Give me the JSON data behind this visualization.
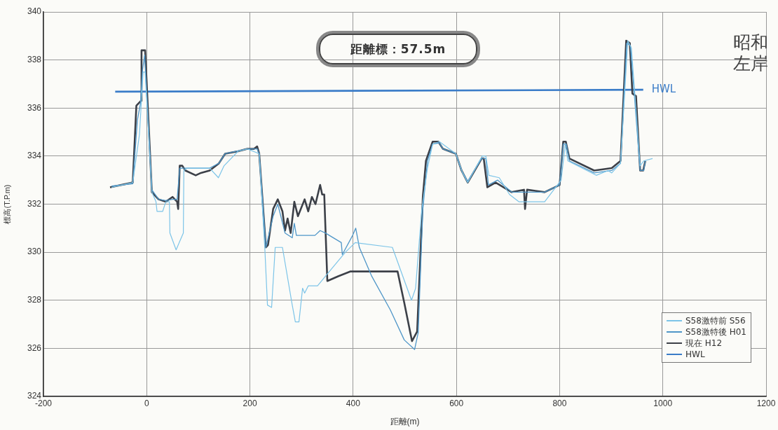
{
  "chart_data": {
    "type": "line",
    "title": "距離標：57.5m",
    "xlabel": "距離(m)",
    "ylabel": "標高(T.P.m)",
    "xlim": [
      -200,
      1200
    ],
    "xticks": [
      -200,
      0,
      200,
      400,
      600,
      800,
      1000,
      1200
    ],
    "ylim": [
      324,
      340
    ],
    "yticks": [
      324,
      326,
      328,
      330,
      332,
      334,
      336,
      338,
      340
    ],
    "grid": true,
    "legend": "bottom right",
    "marker": "none",
    "line_style": "solid",
    "annotations": [
      "HWL",
      "昭和",
      "左岸"
    ],
    "series": [
      {
        "name": "S58激特前 S56",
        "color": "#7cc4e8",
        "x": [
          -68,
          -27,
          -14,
          -7,
          -3,
          10,
          18,
          20,
          31,
          37,
          44,
          45,
          57,
          71,
          72,
          78,
          122,
          139,
          150,
          177,
          195,
          218,
          229,
          234,
          242,
          249,
          263,
          282,
          288,
          295,
          302,
          306,
          313,
          331,
          350,
          385,
          404,
          476,
          513,
          521,
          533,
          544,
          554,
          567,
          599,
          612,
          622,
          650,
          657,
          663,
          683,
          703,
          721,
          771,
          803,
          811,
          816,
          871,
          894,
          901,
          918,
          932,
          939,
          946,
          956,
          963,
          980
        ],
        "values": [
          332.7,
          332.9,
          334.9,
          337.5,
          337.5,
          332.5,
          332.1,
          331.7,
          331.7,
          332.1,
          332.1,
          330.8,
          330.1,
          330.8,
          333.4,
          333.5,
          333.5,
          333.1,
          333.6,
          334.2,
          334.3,
          334.1,
          330.1,
          327.8,
          327.7,
          330.2,
          330.2,
          327.8,
          327.1,
          327.1,
          328.5,
          328.3,
          328.6,
          328.6,
          329.1,
          330.0,
          330.4,
          330.2,
          328.0,
          328.5,
          331.8,
          333.5,
          334.5,
          334.6,
          334.1,
          333.3,
          332.9,
          334.0,
          334.0,
          333.2,
          333.1,
          332.4,
          332.1,
          332.1,
          333.0,
          334.5,
          333.8,
          333.2,
          333.4,
          333.3,
          333.7,
          338.8,
          338.5,
          336.5,
          333.6,
          333.8,
          333.9
        ]
      },
      {
        "name": "S58激特後 H01",
        "color": "#4f96c8",
        "x": [
          -68,
          -27,
          -18,
          -12,
          -8,
          -4,
          10,
          23,
          37,
          50,
          59,
          64,
          72,
          122,
          140,
          152,
          195,
          214,
          218,
          231,
          245,
          254,
          268,
          282,
          286,
          290,
          326,
          336,
          346,
          377,
          379,
          399,
          405,
          412,
          436,
          472,
          499,
          519,
          526,
          535,
          544,
          554,
          567,
          574,
          599,
          610,
          622,
          649,
          657,
          662,
          680,
          707,
          733,
          771,
          800,
          807,
          813,
          819,
          867,
          901,
          918,
          930,
          937,
          945,
          956,
          963,
          966
        ],
        "values": [
          332.75,
          332.85,
          335.5,
          336.2,
          337.6,
          338.2,
          332.6,
          332.2,
          332.15,
          332.2,
          332.2,
          333.5,
          333.5,
          333.5,
          333.7,
          334.1,
          334.3,
          334.3,
          334.1,
          330.2,
          331.5,
          332.0,
          330.8,
          330.6,
          331.2,
          330.7,
          330.7,
          330.9,
          330.8,
          330.4,
          329.9,
          330.7,
          331.0,
          330.2,
          329.0,
          327.6,
          326.35,
          325.95,
          326.65,
          331.8,
          333.8,
          334.5,
          334.55,
          334.3,
          334.1,
          333.4,
          332.95,
          333.9,
          333.9,
          332.8,
          333.0,
          332.5,
          332.5,
          332.5,
          332.8,
          334.5,
          334.5,
          333.8,
          333.3,
          333.4,
          333.7,
          338.7,
          338.6,
          336.5,
          333.4,
          333.4,
          333.8
        ]
      },
      {
        "name": "現在 H12",
        "color": "#3c4048",
        "x": [
          -71,
          -27,
          -20,
          -11,
          -10,
          -3,
          10,
          23,
          37,
          50,
          59,
          61,
          64,
          69,
          75,
          95,
          105,
          122,
          140,
          152,
          177,
          195,
          208,
          214,
          218,
          231,
          235,
          245,
          254,
          263,
          268,
          273,
          279,
          286,
          293,
          306,
          313,
          320,
          327,
          336,
          340,
          344,
          350,
          371,
          395,
          486,
          499,
          514,
          524,
          535,
          541,
          554,
          565,
          574,
          599,
          610,
          622,
          649,
          653,
          660,
          676,
          707,
          731,
          733,
          737,
          771,
          800,
          807,
          812,
          819,
          867,
          901,
          918,
          929,
          936,
          941,
          948,
          956,
          962,
          966
        ],
        "values": [
          332.7,
          332.9,
          336.1,
          336.3,
          338.4,
          338.4,
          332.5,
          332.2,
          332.1,
          332.3,
          332.1,
          331.8,
          333.6,
          333.6,
          333.4,
          333.2,
          333.3,
          333.4,
          333.7,
          334.1,
          334.2,
          334.3,
          334.3,
          334.4,
          334.1,
          330.2,
          330.3,
          331.8,
          332.2,
          331.7,
          330.9,
          331.4,
          330.8,
          332.1,
          331.5,
          332.2,
          331.7,
          332.3,
          332.0,
          332.8,
          332.4,
          332.4,
          328.8,
          329.0,
          329.2,
          329.2,
          327.9,
          326.3,
          326.7,
          332.3,
          333.8,
          334.6,
          334.6,
          334.3,
          334.1,
          333.4,
          332.9,
          333.9,
          333.9,
          332.7,
          332.9,
          332.5,
          332.6,
          331.8,
          332.6,
          332.5,
          332.8,
          334.6,
          334.6,
          333.9,
          333.4,
          333.5,
          333.8,
          338.8,
          338.7,
          336.6,
          336.5,
          333.4,
          333.4,
          333.8
        ]
      },
      {
        "name": "HWL",
        "color": "#3a7cc8",
        "x": [
          -61,
          962
        ],
        "values": [
          336.68,
          336.76
        ]
      }
    ]
  }
}
